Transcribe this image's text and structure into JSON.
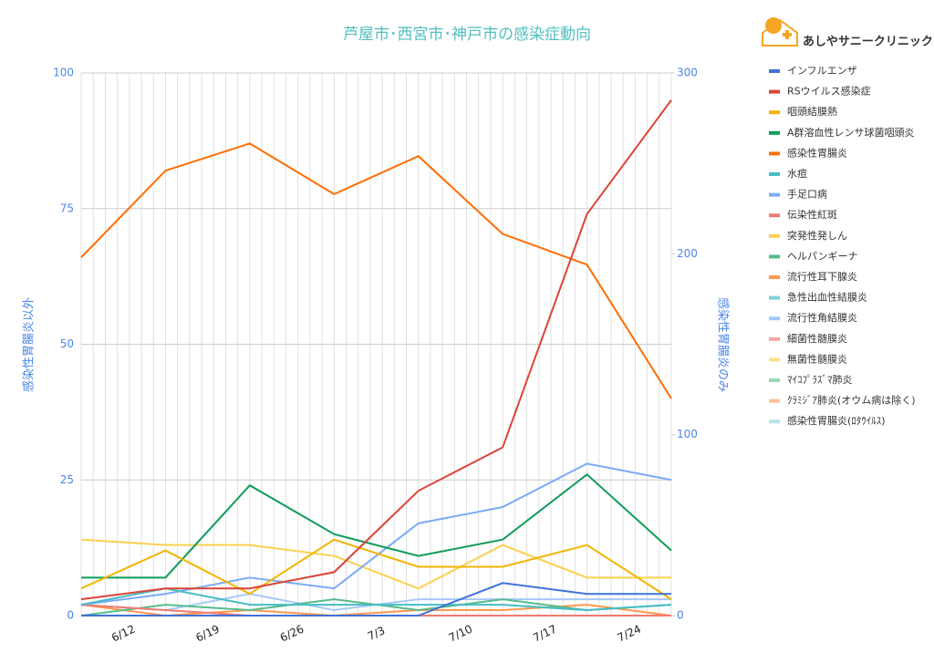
{
  "brand": "あしやサニークリニック",
  "chart_data": {
    "type": "line",
    "title": "芦屋市･西宮市･神戸市の感染症動向",
    "y_label": "感染性胃腸炎以外",
    "y2_label": "感染性胃腸炎のみ",
    "categories": [
      null,
      "6/12",
      "6/19",
      "6/26",
      "7/3",
      "7/10",
      "7/17",
      "7/24"
    ],
    "ylim": [
      0,
      100
    ],
    "yticks": [
      0,
      25,
      50,
      75,
      100
    ],
    "y2lim": [
      0,
      300
    ],
    "y2ticks": [
      0,
      100,
      200,
      300
    ],
    "grid": true,
    "series": [
      {
        "name": "インフルエンザ",
        "color": "#3f72d8",
        "values": [
          0,
          0,
          0,
          0,
          0,
          6,
          4,
          4
        ]
      },
      {
        "name": "RSウイルス感染症",
        "color": "#db4437",
        "values": [
          3,
          5,
          5,
          8,
          23,
          31,
          74,
          95
        ]
      },
      {
        "name": "咽頭結膜熱",
        "color": "#f4b400",
        "values": [
          5,
          12,
          4,
          14,
          9,
          9,
          13,
          3
        ]
      },
      {
        "name": "A群溶血性レンサ球菌咽頭炎",
        "color": "#0f9d58",
        "values": [
          7,
          7,
          24,
          15,
          11,
          14,
          26,
          12
        ]
      },
      {
        "name": "感染性胃腸炎",
        "color": "#ff6d01",
        "axis": "y2",
        "values": [
          198,
          246,
          261,
          233,
          254,
          211,
          194,
          120
        ]
      },
      {
        "name": "水痘",
        "color": "#46bdc6",
        "values": [
          2,
          5,
          2,
          2,
          2,
          2,
          1,
          2
        ]
      },
      {
        "name": "手足口病",
        "color": "#7baaf7",
        "values": [
          2,
          4,
          7,
          5,
          17,
          20,
          28,
          25
        ]
      },
      {
        "name": "伝染性紅斑",
        "color": "#f07b72",
        "values": [
          2,
          1,
          0,
          0,
          0,
          0,
          0,
          0
        ]
      },
      {
        "name": "突発性発しん",
        "color": "#fcd04f",
        "values": [
          14,
          13,
          13,
          11,
          5,
          13,
          7,
          7
        ]
      },
      {
        "name": "ヘルパンギーナ",
        "color": "#57bb8a",
        "values": [
          0,
          2,
          1,
          3,
          1,
          3,
          1,
          2
        ]
      },
      {
        "name": "流行性耳下腺炎",
        "color": "#ff994d",
        "values": [
          2,
          0,
          1,
          0,
          1,
          1,
          2,
          0
        ]
      },
      {
        "name": "急性出血性結膜炎",
        "color": "#7ed1d7",
        "values": [
          0,
          0,
          0,
          0,
          0,
          0,
          0,
          0
        ]
      },
      {
        "name": "流行性角結膜炎",
        "color": "#a6c8fa",
        "values": [
          2,
          1,
          4,
          1,
          3,
          3,
          3,
          3
        ]
      },
      {
        "name": "細菌性髄膜炎",
        "color": "#f4a7a1",
        "values": [
          0,
          0,
          0,
          0,
          0,
          0,
          0,
          0
        ]
      },
      {
        "name": "無菌性髄膜炎",
        "color": "#fde38b",
        "values": [
          0,
          0,
          0,
          0,
          0,
          0,
          0,
          0
        ]
      },
      {
        "name": "ﾏｲｺﾌﾟﾗｽﾞﾏ肺炎",
        "color": "#9bd6b3",
        "values": [
          0,
          0,
          0,
          0,
          0,
          0,
          0,
          0
        ]
      },
      {
        "name": "ｸﾗﾐｼﾞｱ肺炎(オウム病は除く)",
        "color": "#ffbf90",
        "values": [
          0,
          0,
          0,
          0,
          0,
          0,
          0,
          0
        ]
      },
      {
        "name": "感染性胃腸炎(ﾛﾀｳｲﾙｽ)",
        "color": "#b3e3e6",
        "values": [
          0,
          0,
          0,
          0,
          0,
          0,
          0,
          0
        ]
      }
    ]
  }
}
